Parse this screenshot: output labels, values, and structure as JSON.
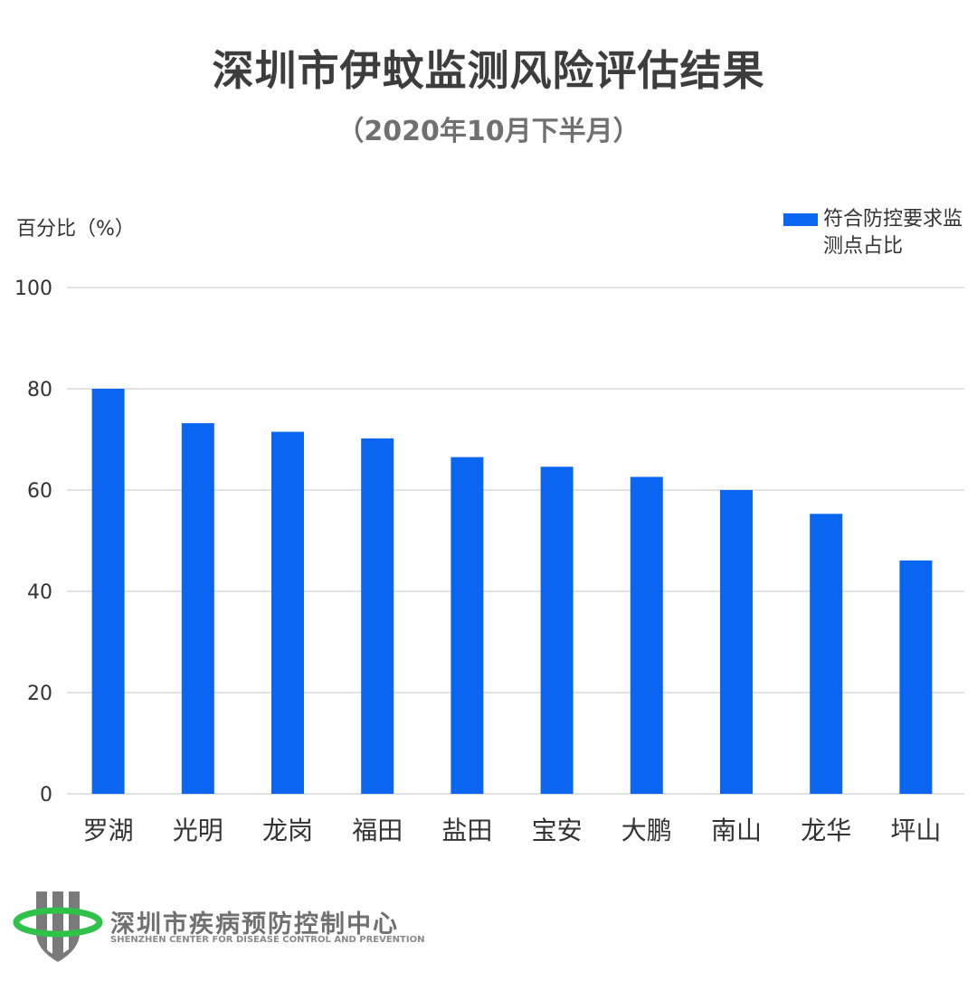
{
  "header": {
    "title": "深圳市伊蚊监测风险评估结果",
    "subtitle": "（2020年10月下半月）"
  },
  "logo": {
    "name": "深圳市疾病预防控制中心",
    "name_en": "SHENZHEN CENTER FOR DISEASE CONTROL AND PREVENTION",
    "icon": "shield-logo-icon"
  },
  "colors": {
    "bar": "#0a66f0",
    "grid": "#d9d9d9",
    "text": "#333333",
    "logo_grey": "#7a7a7a",
    "logo_green": "#2ec24a"
  },
  "chart_data": {
    "type": "bar",
    "title": "深圳市伊蚊监测风险评估结果",
    "subtitle": "（2020年10月下半月）",
    "xlabel": "",
    "ylabel": "百分比（%）",
    "categories": [
      "罗湖",
      "光明",
      "龙岗",
      "福田",
      "盐田",
      "宝安",
      "大鹏",
      "南山",
      "龙华",
      "坪山"
    ],
    "series": [
      {
        "name": "符合防控要求监测点占比",
        "values": [
          80,
          73.2,
          71.5,
          70.2,
          66.5,
          64.6,
          62.6,
          60,
          55.3,
          46.1
        ]
      }
    ],
    "ylim": [
      0,
      100
    ],
    "yticks": [
      0,
      20,
      40,
      60,
      80,
      100
    ],
    "grid": true,
    "legend_position": "top-right"
  }
}
